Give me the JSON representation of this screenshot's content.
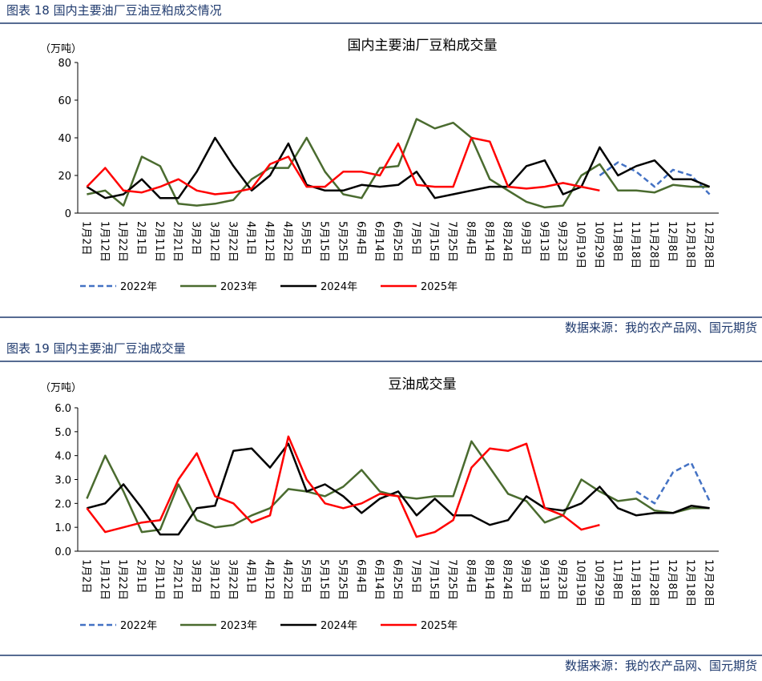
{
  "chart_data": [
    {
      "type": "line",
      "caption": "图表 18 国内主要油厂豆油豆粕成交情况",
      "title": "国内主要油厂豆粕成交量",
      "unit": "（万吨）",
      "source": "数据来源：我的农产品网、国元期货",
      "categories": [
        "1月2日",
        "1月12日",
        "1月22日",
        "2月1日",
        "2月11日",
        "2月21日",
        "3月2日",
        "3月12日",
        "3月22日",
        "4月1日",
        "4月12日",
        "4月22日",
        "5月5日",
        "5月15日",
        "5月25日",
        "6月4日",
        "6月14日",
        "6月25日",
        "7月5日",
        "7月15日",
        "7月25日",
        "8月4日",
        "8月14日",
        "8月24日",
        "9月3日",
        "9月13日",
        "9月23日",
        "10月19日",
        "10月29日",
        "11月8日",
        "11月18日",
        "11月28日",
        "12月8日",
        "12月18日",
        "12月28日"
      ],
      "ylim": [
        0,
        80
      ],
      "yticks": [
        0,
        20,
        40,
        60,
        80
      ],
      "series": [
        {
          "name": "2022年",
          "color": "#4472c4",
          "style": "dashed",
          "values": [
            null,
            null,
            null,
            null,
            null,
            null,
            null,
            null,
            null,
            null,
            null,
            null,
            null,
            null,
            null,
            null,
            null,
            null,
            null,
            null,
            null,
            null,
            null,
            null,
            null,
            null,
            null,
            null,
            20,
            27,
            22,
            14,
            23,
            20,
            10
          ]
        },
        {
          "name": "2023年",
          "color": "#4a6b2f",
          "style": "solid",
          "values": [
            10,
            12,
            4,
            30,
            25,
            5,
            4,
            5,
            7,
            18,
            24,
            24,
            40,
            22,
            10,
            8,
            24,
            25,
            50,
            45,
            48,
            40,
            18,
            12,
            6,
            3,
            4,
            20,
            26,
            12,
            12,
            11,
            15,
            14,
            14
          ]
        },
        {
          "name": "2024年",
          "color": "#000000",
          "style": "solid",
          "values": [
            14,
            8,
            10,
            18,
            8,
            8,
            22,
            40,
            25,
            12,
            20,
            37,
            15,
            12,
            12,
            15,
            14,
            15,
            22,
            8,
            10,
            12,
            14,
            14,
            25,
            28,
            10,
            14,
            35,
            20,
            25,
            28,
            18,
            18,
            14
          ]
        },
        {
          "name": "2025年",
          "color": "#ff0000",
          "style": "solid",
          "values": [
            14,
            24,
            12,
            11,
            14,
            18,
            12,
            10,
            11,
            13,
            26,
            30,
            14,
            14,
            22,
            22,
            20,
            37,
            15,
            14,
            14,
            40,
            38,
            14,
            13,
            14,
            16,
            14,
            12,
            null,
            null,
            null,
            null,
            null,
            null
          ]
        }
      ]
    },
    {
      "type": "line",
      "caption": "图表 19 国内主要油厂豆油成交量",
      "title": "豆油成交量",
      "unit": "（万吨）",
      "source": "数据来源：我的农产品网、国元期货",
      "categories": [
        "1月2日",
        "1月12日",
        "1月22日",
        "2月1日",
        "2月11日",
        "2月21日",
        "3月2日",
        "3月12日",
        "3月22日",
        "4月1日",
        "4月12日",
        "4月22日",
        "5月5日",
        "5月15日",
        "5月25日",
        "6月4日",
        "6月14日",
        "6月25日",
        "7月5日",
        "7月15日",
        "7月25日",
        "8月4日",
        "8月14日",
        "8月24日",
        "9月3日",
        "9月13日",
        "9月23日",
        "10月19日",
        "10月29日",
        "11月8日",
        "11月18日",
        "11月28日",
        "12月8日",
        "12月18日",
        "12月28日"
      ],
      "ylim": [
        0,
        6
      ],
      "yticks": [
        {
          "value": 0,
          "label": "0.0"
        },
        {
          "value": 1,
          "label": "1.0"
        },
        {
          "value": 2,
          "label": "2.0"
        },
        {
          "value": 3,
          "label": "3.0"
        },
        {
          "value": 4,
          "label": "4.0"
        },
        {
          "value": 5,
          "label": "5.0"
        },
        {
          "value": 6,
          "label": "6.0"
        }
      ],
      "series": [
        {
          "name": "2022年",
          "color": "#4472c4",
          "style": "dashed",
          "values": [
            null,
            null,
            null,
            null,
            null,
            null,
            null,
            null,
            null,
            null,
            null,
            null,
            null,
            null,
            null,
            null,
            null,
            null,
            null,
            null,
            null,
            null,
            null,
            null,
            null,
            null,
            null,
            null,
            null,
            null,
            2.5,
            2.0,
            3.3,
            3.7,
            2.1
          ]
        },
        {
          "name": "2023年",
          "color": "#4a6b2f",
          "style": "solid",
          "values": [
            2.2,
            4.0,
            2.5,
            0.8,
            0.9,
            2.8,
            1.3,
            1.0,
            1.1,
            1.5,
            1.8,
            2.6,
            2.5,
            2.3,
            2.7,
            3.4,
            2.5,
            2.3,
            2.2,
            2.3,
            2.3,
            4.6,
            3.5,
            2.4,
            2.1,
            1.2,
            1.5,
            3.0,
            2.5,
            2.1,
            2.2,
            1.7,
            1.6,
            1.8,
            1.8
          ]
        },
        {
          "name": "2024年",
          "color": "#000000",
          "style": "solid",
          "values": [
            1.8,
            2.0,
            2.8,
            1.8,
            0.7,
            0.7,
            1.8,
            1.9,
            4.2,
            4.3,
            3.5,
            4.5,
            2.5,
            2.8,
            2.3,
            1.6,
            2.2,
            2.5,
            1.5,
            2.2,
            1.5,
            1.5,
            1.1,
            1.3,
            2.3,
            1.8,
            1.7,
            2.0,
            2.7,
            1.8,
            1.5,
            1.6,
            1.6,
            1.9,
            1.8
          ]
        },
        {
          "name": "2025年",
          "color": "#ff0000",
          "style": "solid",
          "values": [
            1.8,
            0.8,
            1.0,
            1.2,
            1.3,
            3.0,
            4.1,
            2.3,
            2.0,
            1.2,
            1.5,
            4.8,
            3.0,
            2.0,
            1.8,
            2.0,
            2.4,
            2.3,
            0.6,
            0.8,
            1.3,
            3.5,
            4.3,
            4.2,
            4.5,
            1.8,
            1.5,
            0.9,
            1.1,
            null,
            null,
            null,
            null,
            null,
            null
          ]
        }
      ]
    }
  ]
}
